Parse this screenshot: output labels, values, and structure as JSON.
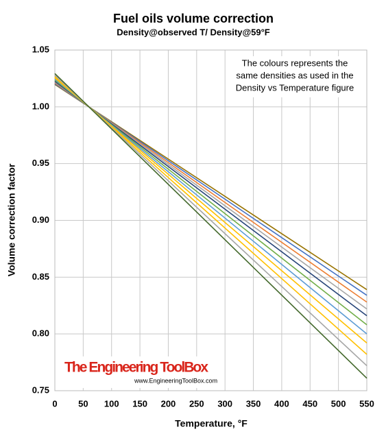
{
  "chart_data": {
    "type": "line",
    "title": "Fuel oils volume correction",
    "subtitle": "Density@observed T/ Density@59°F",
    "x_label": "Temperature, °F",
    "y_label": "Volume correction factor",
    "annotation": [
      "The colours represents the",
      "same densities as used in the",
      "Density vs Temperature figure"
    ],
    "watermark": {
      "title": "The Engineering ToolBox",
      "url": "www.EngineeringToolBox.com"
    },
    "x": [
      0,
      550
    ],
    "series": [
      {
        "color": "#997300",
        "values": [
          1.0197,
          0.839
        ]
      },
      {
        "color": "#4472c4",
        "values": [
          1.0203,
          0.834
        ]
      },
      {
        "color": "#ed7d31",
        "values": [
          1.0211,
          0.828
        ]
      },
      {
        "color": "#a5a5a5",
        "values": [
          1.0218,
          0.822
        ]
      },
      {
        "color": "#264478",
        "values": [
          1.0225,
          0.816
        ]
      },
      {
        "color": "#70ad47",
        "values": [
          1.0235,
          0.808
        ]
      },
      {
        "color": "#5b9bd5",
        "values": [
          1.0245,
          0.8
        ]
      },
      {
        "color": "#ffc000",
        "values": [
          1.0255,
          0.792
        ]
      },
      {
        "color": "#ffc000",
        "values": [
          1.0267,
          0.782
        ]
      },
      {
        "color": "#a5a5a5",
        "values": [
          1.0279,
          0.772
        ]
      },
      {
        "color": "#43682b",
        "values": [
          1.0293,
          0.761
        ]
      }
    ],
    "xlim": [
      0,
      550
    ],
    "xticks": [
      0,
      50,
      100,
      150,
      200,
      250,
      300,
      350,
      400,
      450,
      500,
      550
    ],
    "ylim": [
      0.75,
      1.05
    ],
    "yticks": [
      {
        "value": 0.75,
        "label": "0.75"
      },
      {
        "value": 0.8,
        "label": "0.80"
      },
      {
        "value": 0.85,
        "label": "0.85"
      },
      {
        "value": 0.9,
        "label": "0.90"
      },
      {
        "value": 0.95,
        "label": "0.95"
      },
      {
        "value": 1.0,
        "label": "1.00"
      },
      {
        "value": 1.05,
        "label": "1.05"
      }
    ],
    "grid": true
  }
}
